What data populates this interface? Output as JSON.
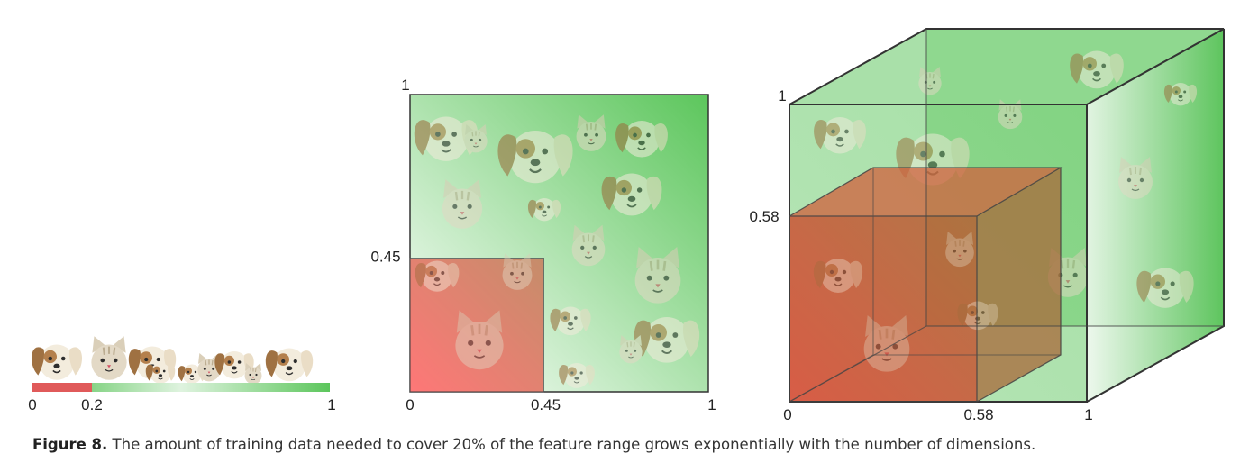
{
  "panel_1d": {
    "tick_labels": [
      "0",
      "0.2",
      "1"
    ],
    "fraction": 0.2
  },
  "panel_2d": {
    "x_tick_labels": [
      "0",
      "0.45",
      "1"
    ],
    "y_tick_labels": [
      "1",
      "0.45"
    ],
    "fraction": 0.45
  },
  "panel_3d": {
    "x_tick_labels": [
      "0",
      "0.58",
      "1"
    ],
    "y_tick_labels": [
      "1",
      "0.58"
    ],
    "fraction": 0.58
  },
  "colors": {
    "green": "#5cc65c",
    "light_green": "#e8f7e8",
    "red": "#ff5a5a",
    "dark_red": "#c0392b",
    "outline": "#333333"
  },
  "icons": [
    "dog-icon",
    "cat-icon"
  ],
  "caption": {
    "label": "Figure 8.",
    "text": " The amount of training data needed to cover 20% of the feature range grows exponentially with the number of dimensions."
  }
}
